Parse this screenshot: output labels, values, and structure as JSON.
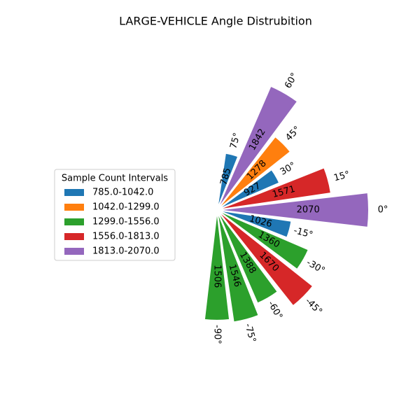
{
  "chart_data": {
    "type": "polar-bar",
    "title": "LARGE-VEHICLE Angle Distrubition",
    "categories": [
      "75°",
      "60°",
      "45°",
      "30°",
      "15°",
      "0°",
      "-15°",
      "-30°",
      "-45°",
      "-60°",
      "-75°",
      "-90°"
    ],
    "angles": [
      75,
      60,
      45,
      30,
      15,
      0,
      -15,
      -30,
      -45,
      -60,
      -75,
      -90
    ],
    "values": [
      785,
      1842,
      1278,
      927,
      1571,
      2070,
      1026,
      1360,
      1670,
      1388,
      1546,
      1506
    ],
    "colors": [
      "#1f77b4",
      "#9467bd",
      "#ff7f0e",
      "#1f77b4",
      "#d62728",
      "#9467bd",
      "#1f77b4",
      "#2ca02c",
      "#d62728",
      "#2ca02c",
      "#2ca02c",
      "#2ca02c"
    ],
    "rlim": [
      0,
      2070
    ],
    "legend": {
      "title": "Sample Count Intervals",
      "position": "left",
      "entries": [
        {
          "label": "785.0-1042.0",
          "color": "#1f77b4"
        },
        {
          "label": "1042.0-1299.0",
          "color": "#ff7f0e"
        },
        {
          "label": "1299.0-1556.0",
          "color": "#2ca02c"
        },
        {
          "label": "1556.0-1813.0",
          "color": "#d62728"
        },
        {
          "label": "1813.0-2070.0",
          "color": "#9467bd"
        }
      ]
    }
  }
}
